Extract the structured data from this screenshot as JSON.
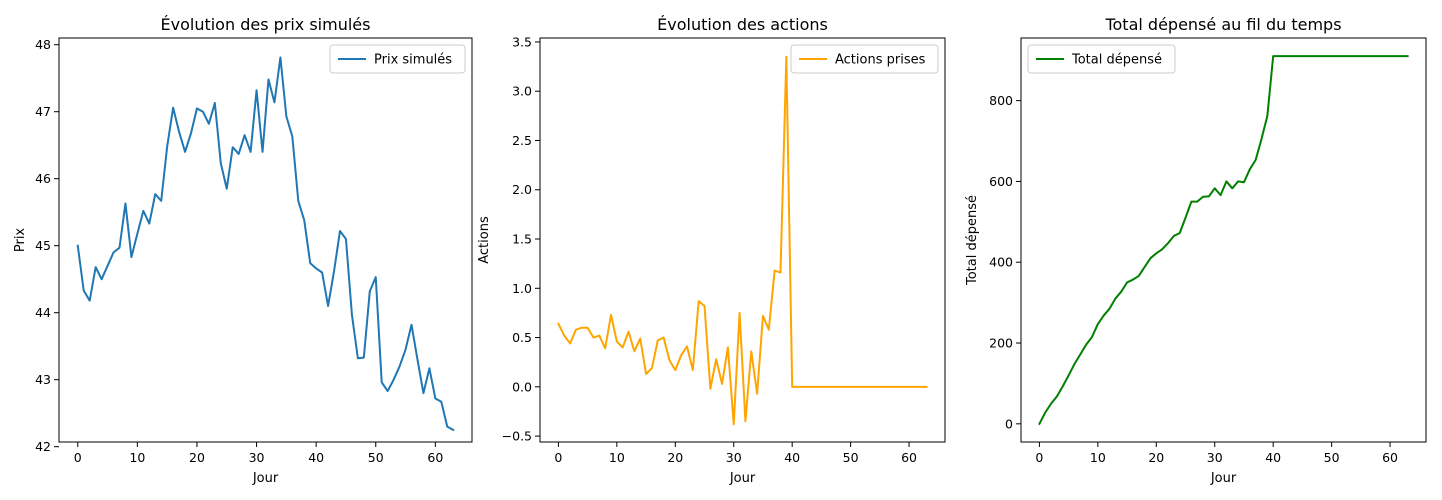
{
  "chart_data": [
    {
      "type": "line",
      "title": "Évolution des prix simulés",
      "xlabel": "Jour",
      "ylabel": "Prix",
      "xlim": [
        -3.15,
        66.15
      ],
      "ylim": [
        42.07,
        48.1
      ],
      "xticks": [
        0,
        10,
        20,
        30,
        40,
        50,
        60
      ],
      "xtick_labels": [
        "0",
        "10",
        "20",
        "30",
        "40",
        "50",
        "60"
      ],
      "yticks": [
        42,
        43,
        44,
        45,
        46,
        47,
        48
      ],
      "ytick_labels": [
        "42",
        "43",
        "44",
        "45",
        "46",
        "47",
        "48"
      ],
      "legend_position": "top-right",
      "grid": false,
      "series": [
        {
          "name": "Prix simulés",
          "color": "#1f77b4",
          "x": [
            0,
            1,
            2,
            3,
            4,
            5,
            6,
            7,
            8,
            9,
            10,
            11,
            12,
            13,
            14,
            15,
            16,
            17,
            18,
            19,
            20,
            21,
            22,
            23,
            24,
            25,
            26,
            27,
            28,
            29,
            30,
            31,
            32,
            33,
            34,
            35,
            36,
            37,
            38,
            39,
            40,
            41,
            42,
            43,
            44,
            45,
            46,
            47,
            48,
            49,
            50,
            51,
            52,
            53,
            54,
            55,
            56,
            57,
            58,
            59,
            60,
            61,
            62,
            63
          ],
          "values": [
            45.0,
            44.33,
            44.18,
            44.68,
            44.5,
            44.7,
            44.9,
            44.97,
            45.63,
            44.83,
            45.18,
            45.52,
            45.33,
            45.77,
            45.67,
            46.48,
            47.06,
            46.7,
            46.4,
            46.68,
            47.05,
            47.0,
            46.82,
            47.13,
            46.23,
            45.85,
            46.47,
            46.37,
            46.65,
            46.4,
            47.32,
            46.4,
            47.48,
            47.14,
            47.81,
            46.93,
            46.63,
            45.67,
            45.38,
            44.74,
            44.66,
            44.6,
            44.1,
            44.62,
            45.22,
            45.1,
            43.97,
            43.32,
            43.33,
            44.32,
            44.53,
            42.96,
            42.83,
            43.0,
            43.2,
            43.45,
            43.82,
            43.3,
            42.8,
            43.17,
            42.72,
            42.67,
            42.3,
            42.25
          ]
        }
      ]
    },
    {
      "type": "line",
      "title": "Évolution des actions",
      "xlabel": "Jour",
      "ylabel": "Actions",
      "xlim": [
        -3.15,
        66.15
      ],
      "ylim": [
        -0.56,
        3.54
      ],
      "xticks": [
        0,
        10,
        20,
        30,
        40,
        50,
        60
      ],
      "xtick_labels": [
        "0",
        "10",
        "20",
        "30",
        "40",
        "50",
        "60"
      ],
      "yticks": [
        -0.5,
        0.0,
        0.5,
        1.0,
        1.5,
        2.0,
        2.5,
        3.0,
        3.5
      ],
      "ytick_labels": [
        "−0.5",
        "0.0",
        "0.5",
        "1.0",
        "1.5",
        "2.0",
        "2.5",
        "3.0",
        "3.5"
      ],
      "legend_position": "top-right",
      "grid": false,
      "series": [
        {
          "name": "Actions prises",
          "color": "#ffa500",
          "x": [
            0,
            1,
            2,
            3,
            4,
            5,
            6,
            7,
            8,
            9,
            10,
            11,
            12,
            13,
            14,
            15,
            16,
            17,
            18,
            19,
            20,
            21,
            22,
            23,
            24,
            25,
            26,
            27,
            28,
            29,
            30,
            31,
            32,
            33,
            34,
            35,
            36,
            37,
            38,
            39,
            40,
            41,
            42,
            43,
            44,
            45,
            46,
            47,
            48,
            49,
            50,
            51,
            52,
            53,
            54,
            55,
            56,
            57,
            58,
            59,
            60,
            61,
            62,
            63
          ],
          "values": [
            0.64,
            0.52,
            0.44,
            0.58,
            0.6,
            0.6,
            0.5,
            0.52,
            0.39,
            0.73,
            0.46,
            0.4,
            0.56,
            0.36,
            0.49,
            0.13,
            0.19,
            0.47,
            0.5,
            0.27,
            0.17,
            0.32,
            0.41,
            0.17,
            0.87,
            0.82,
            -0.02,
            0.28,
            0.03,
            0.4,
            -0.38,
            0.75,
            -0.35,
            0.36,
            -0.07,
            0.72,
            0.58,
            1.18,
            1.16,
            3.35,
            0.0,
            0.0,
            0.0,
            0.0,
            0.0,
            0.0,
            0.0,
            0.0,
            0.0,
            0.0,
            0.0,
            0.0,
            0.0,
            0.0,
            0.0,
            0.0,
            0.0,
            0.0,
            0.0,
            0.0,
            0.0,
            0.0,
            0.0,
            0.0
          ]
        }
      ]
    },
    {
      "type": "line",
      "title": "Total dépensé au fil du temps",
      "xlabel": "Jour",
      "ylabel": "Total dépensé",
      "xlim": [
        -3.15,
        66.15
      ],
      "ylim": [
        -45,
        955
      ],
      "xticks": [
        0,
        10,
        20,
        30,
        40,
        50,
        60
      ],
      "xtick_labels": [
        "0",
        "10",
        "20",
        "30",
        "40",
        "50",
        "60"
      ],
      "yticks": [
        0,
        200,
        400,
        600,
        800
      ],
      "ytick_labels": [
        "0",
        "200",
        "400",
        "600",
        "800"
      ],
      "legend_position": "top-left",
      "grid": false,
      "series": [
        {
          "name": "Total dépensé",
          "color": "#008000",
          "x": [
            0,
            1,
            2,
            3,
            4,
            5,
            6,
            7,
            8,
            9,
            10,
            11,
            12,
            13,
            14,
            15,
            16,
            17,
            18,
            19,
            20,
            21,
            22,
            23,
            24,
            25,
            26,
            27,
            28,
            29,
            30,
            31,
            32,
            33,
            34,
            35,
            36,
            37,
            38,
            39,
            40,
            41,
            42,
            43,
            44,
            45,
            46,
            47,
            48,
            49,
            50,
            51,
            52,
            53,
            54,
            55,
            56,
            57,
            58,
            59,
            60,
            61,
            62,
            63
          ],
          "values": [
            0,
            28,
            50,
            68,
            93,
            120,
            148,
            172,
            196,
            215,
            247,
            268,
            285,
            310,
            327,
            350,
            357,
            366,
            388,
            410,
            422,
            432,
            447,
            465,
            472,
            510,
            550,
            550,
            562,
            563,
            583,
            566,
            600,
            583,
            600,
            598,
            630,
            653,
            705,
            762,
            910,
            910,
            910,
            910,
            910,
            910,
            910,
            910,
            910,
            910,
            910,
            910,
            910,
            910,
            910,
            910,
            910,
            910,
            910,
            910,
            910,
            910,
            910,
            910
          ]
        }
      ]
    }
  ]
}
